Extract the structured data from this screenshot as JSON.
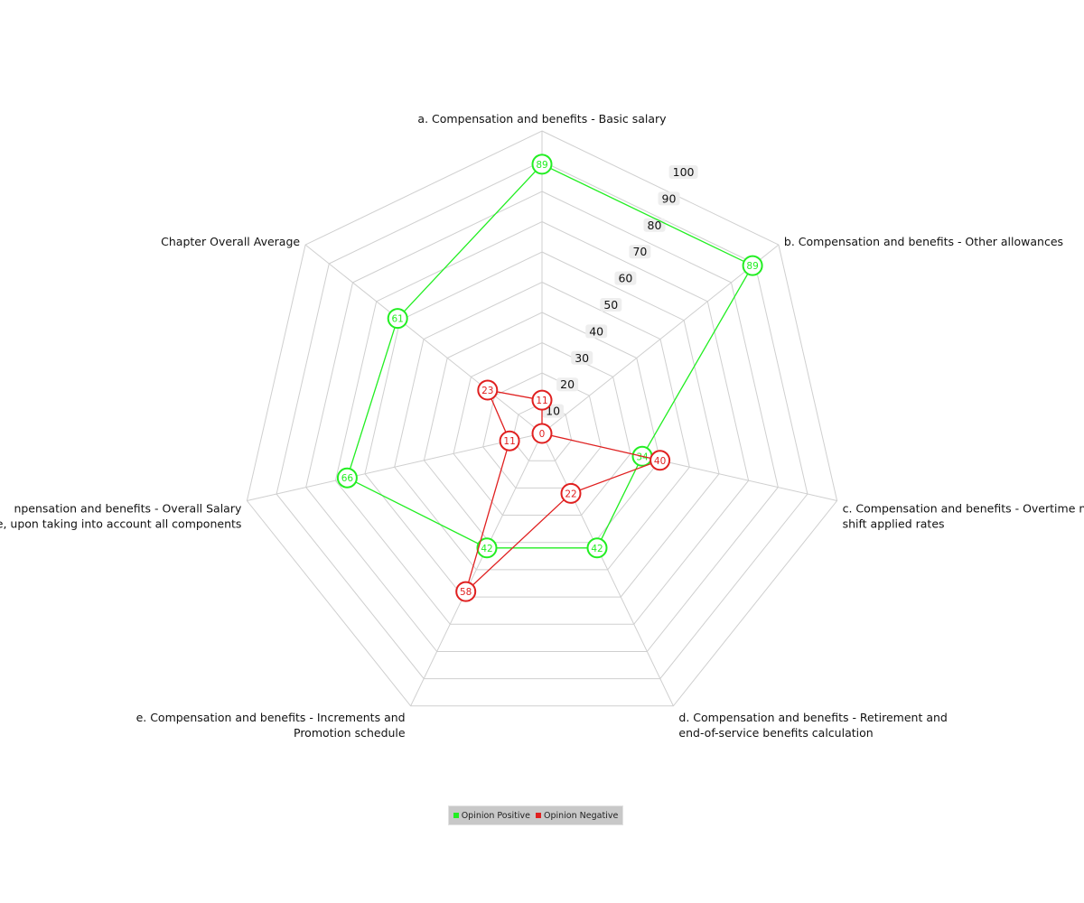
{
  "chart_data": {
    "type": "radar",
    "categories": [
      [
        "a. Compensation and benefits - Basic salary"
      ],
      [
        "b. Compensation and benefits - Other allowances"
      ],
      [
        "c. Compensation and benefits - Overtime  n",
        "shift applied rates"
      ],
      [
        "d. Compensation and benefits - Retirement and",
        "end-of-service benefits calculation"
      ],
      [
        "e. Compensation and benefits - Increments and",
        "Promotion schedule"
      ],
      [
        "npensation and benefits - Overall Salary",
        "ge, upon taking into account all components"
      ],
      [
        "Chapter Overall Average"
      ]
    ],
    "rmax": 100,
    "ticks": [
      10,
      20,
      30,
      40,
      50,
      60,
      70,
      80,
      90,
      100
    ],
    "grid": true,
    "series": [
      {
        "name": "Opinion Positive",
        "color": "#22ee22",
        "values": [
          89,
          89,
          34,
          42,
          42,
          66,
          61
        ]
      },
      {
        "name": "Opinion Negative",
        "color": "#e02020",
        "values": [
          11,
          0,
          40,
          22,
          58,
          11,
          23
        ]
      }
    ],
    "legend_position": "bottom-center"
  }
}
